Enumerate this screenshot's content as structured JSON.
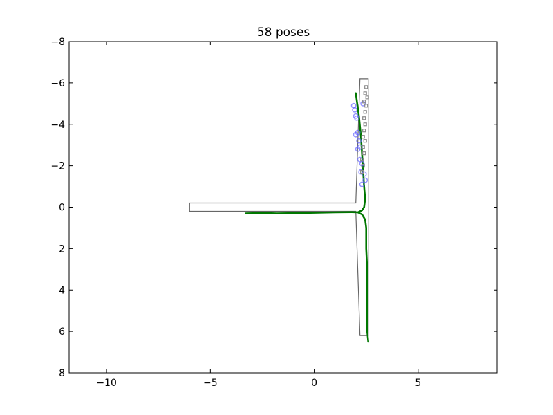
{
  "chart_data": {
    "type": "line",
    "title": "58 poses",
    "xlabel": "",
    "ylabel": "",
    "xlim": [
      -11.8,
      8.8
    ],
    "ylim": [
      8,
      -8
    ],
    "y_axis_inverted": true,
    "grid": false,
    "legend": "none",
    "x_ticks": [
      -10,
      -5,
      0,
      5
    ],
    "x_tick_labels": [
      "−10",
      "−5",
      "0",
      "5"
    ],
    "y_ticks": [
      -8,
      -6,
      -4,
      -2,
      0,
      2,
      4,
      6,
      8
    ],
    "y_tick_labels": [
      "−8",
      "−6",
      "−4",
      "−2",
      "0",
      "2",
      "4",
      "6",
      "8"
    ],
    "colors": {
      "corridor_outline": "#666666",
      "trajectory": "#007700",
      "blue_markers": "#6666ff",
      "gray_markers": "#888888"
    },
    "series": [
      {
        "kind": "outline",
        "points": [
          [
            -6.0,
            -0.2
          ],
          [
            2.0,
            -0.2
          ],
          [
            2.2,
            -6.2
          ],
          [
            2.6,
            -6.2
          ],
          [
            2.6,
            6.2
          ],
          [
            2.2,
            6.2
          ],
          [
            2.0,
            0.2
          ],
          [
            -6.0,
            0.2
          ],
          [
            -6.0,
            -0.2
          ]
        ]
      },
      {
        "kind": "trajectory",
        "points": [
          [
            -3.3,
            0.3
          ],
          [
            -2.5,
            0.28
          ],
          [
            -1.8,
            0.3
          ],
          [
            -1.0,
            0.29
          ],
          [
            0.0,
            0.27
          ],
          [
            1.0,
            0.25
          ],
          [
            1.8,
            0.24
          ],
          [
            2.1,
            0.25
          ],
          [
            2.3,
            0.15
          ],
          [
            2.4,
            0.0
          ],
          [
            2.45,
            -0.4
          ],
          [
            2.4,
            -1.0
          ],
          [
            2.35,
            -1.8
          ],
          [
            2.3,
            -2.6
          ],
          [
            2.25,
            -3.4
          ],
          [
            2.15,
            -4.4
          ],
          [
            2.0,
            -5.5
          ]
        ]
      },
      {
        "kind": "trajectory",
        "points": [
          [
            2.1,
            0.25
          ],
          [
            2.3,
            0.35
          ],
          [
            2.45,
            0.6
          ],
          [
            2.5,
            1.0
          ],
          [
            2.5,
            2.0
          ],
          [
            2.55,
            3.0
          ],
          [
            2.55,
            4.0
          ],
          [
            2.55,
            5.0
          ],
          [
            2.55,
            6.0
          ],
          [
            2.6,
            6.5
          ]
        ]
      },
      {
        "kind": "markers_blue",
        "points": [
          [
            1.9,
            -4.9
          ],
          [
            1.95,
            -4.7
          ],
          [
            2.0,
            -4.4
          ],
          [
            2.05,
            -4.3
          ],
          [
            2.1,
            -3.6
          ],
          [
            2.0,
            -3.5
          ],
          [
            2.15,
            -3.2
          ],
          [
            2.2,
            -2.9
          ],
          [
            2.1,
            -2.8
          ],
          [
            2.2,
            -2.3
          ],
          [
            2.3,
            -2.1
          ],
          [
            2.25,
            -1.7
          ],
          [
            2.4,
            -1.6
          ],
          [
            2.45,
            -1.3
          ],
          [
            2.3,
            -1.1
          ],
          [
            2.35,
            -5.0
          ]
        ]
      },
      {
        "kind": "markers_gray",
        "points": [
          [
            2.5,
            -5.8
          ],
          [
            2.45,
            -5.5
          ],
          [
            2.55,
            -5.3
          ],
          [
            2.4,
            -5.1
          ],
          [
            2.5,
            -4.9
          ],
          [
            2.45,
            -4.6
          ],
          [
            2.4,
            -4.3
          ],
          [
            2.45,
            -4.0
          ],
          [
            2.4,
            -3.7
          ],
          [
            2.35,
            -3.4
          ],
          [
            2.45,
            -3.2
          ],
          [
            2.35,
            -2.9
          ],
          [
            2.4,
            -2.6
          ],
          [
            2.3,
            -2.3
          ],
          [
            2.35,
            -2.0
          ],
          [
            2.3,
            -1.7
          ]
        ]
      }
    ]
  }
}
